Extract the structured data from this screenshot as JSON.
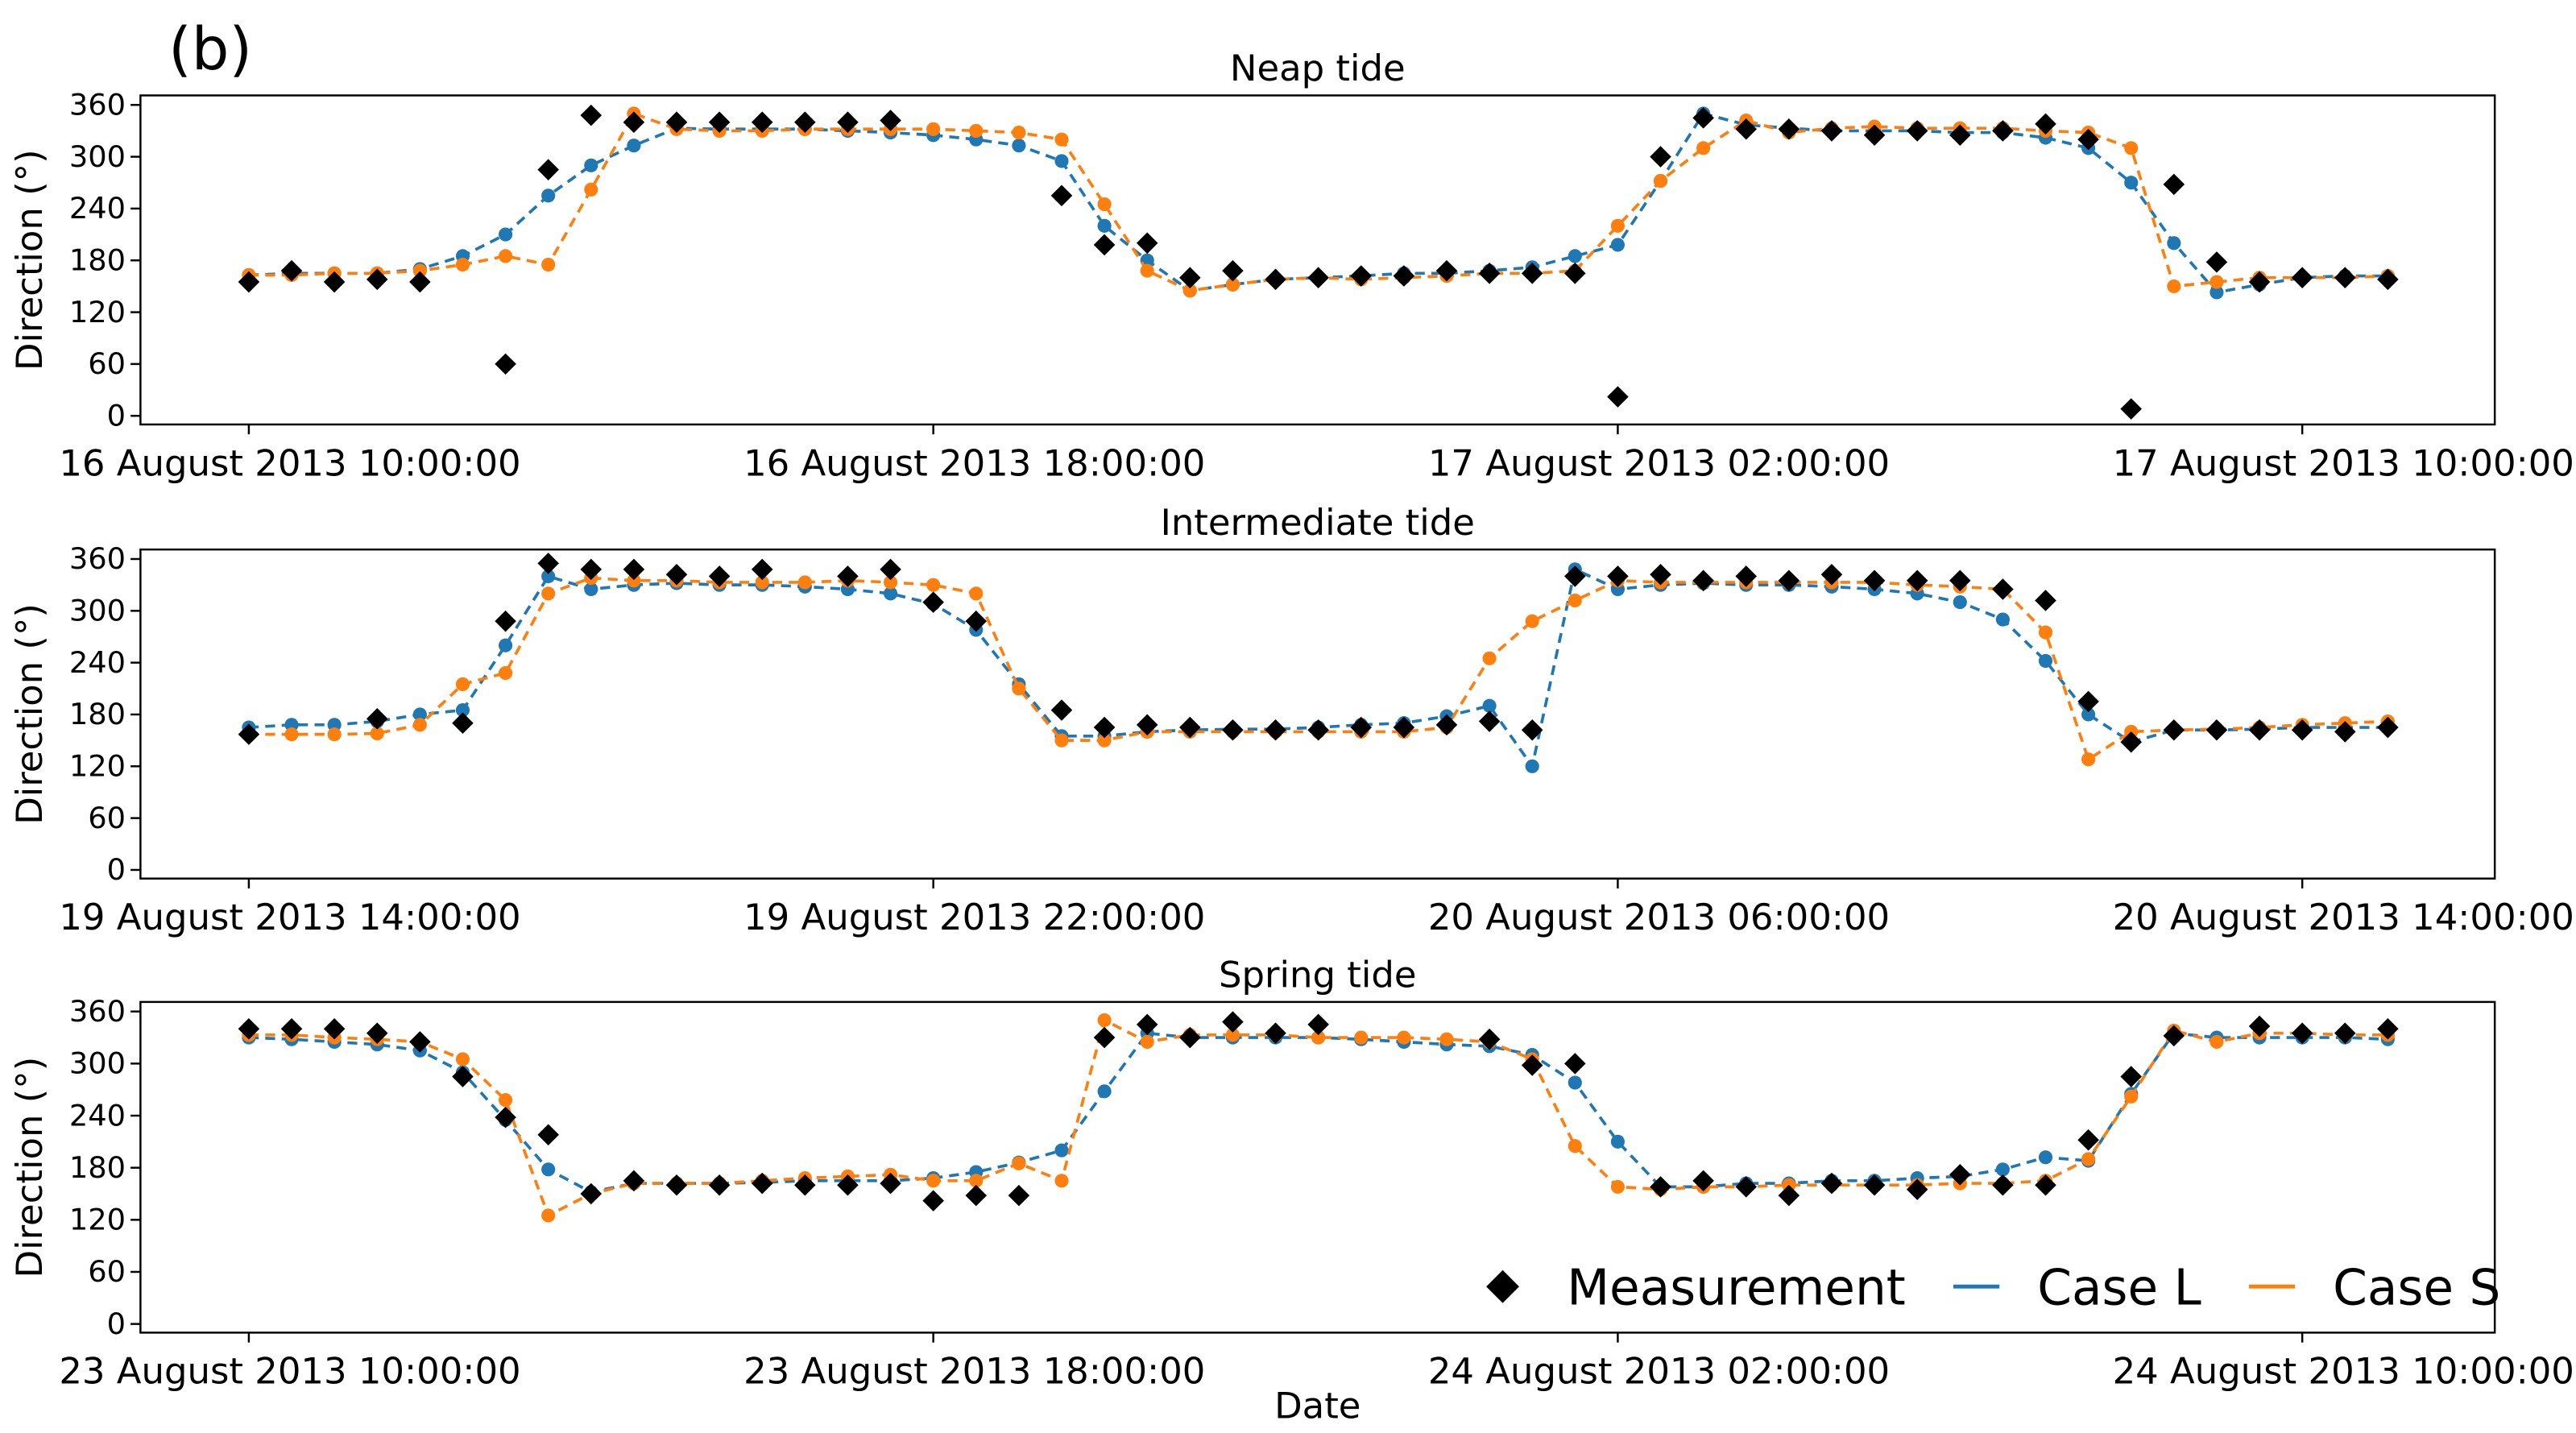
{
  "figure_label": "(b)",
  "chart_data": [
    {
      "type": "line",
      "title": "Neap tide",
      "ylabel": "Direction (°)",
      "x": [
        "2013-08-16T10:00:00",
        "2013-08-16T10:30:00",
        "2013-08-16T11:00:00",
        "2013-08-16T11:30:00",
        "2013-08-16T12:00:00",
        "2013-08-16T12:30:00",
        "2013-08-16T13:00:00",
        "2013-08-16T13:30:00",
        "2013-08-16T14:00:00",
        "2013-08-16T14:30:00",
        "2013-08-16T15:00:00",
        "2013-08-16T15:30:00",
        "2013-08-16T16:00:00",
        "2013-08-16T16:30:00",
        "2013-08-16T17:00:00",
        "2013-08-16T17:30:00",
        "2013-08-16T18:00:00",
        "2013-08-16T18:30:00",
        "2013-08-16T19:00:00",
        "2013-08-16T19:30:00",
        "2013-08-16T20:00:00",
        "2013-08-16T20:30:00",
        "2013-08-16T21:00:00",
        "2013-08-16T21:30:00",
        "2013-08-16T22:00:00",
        "2013-08-16T22:30:00",
        "2013-08-16T23:00:00",
        "2013-08-16T23:30:00",
        "2013-08-17T00:00:00",
        "2013-08-17T00:30:00",
        "2013-08-17T01:00:00",
        "2013-08-17T01:30:00",
        "2013-08-17T02:00:00",
        "2013-08-17T02:30:00",
        "2013-08-17T03:00:00",
        "2013-08-17T03:30:00",
        "2013-08-17T04:00:00",
        "2013-08-17T04:30:00",
        "2013-08-17T05:00:00",
        "2013-08-17T05:30:00",
        "2013-08-17T06:00:00",
        "2013-08-17T06:30:00",
        "2013-08-17T07:00:00",
        "2013-08-17T07:30:00",
        "2013-08-17T08:00:00",
        "2013-08-17T08:30:00",
        "2013-08-17T09:00:00",
        "2013-08-17T09:30:00",
        "2013-08-17T10:00:00",
        "2013-08-17T10:30:00",
        "2013-08-17T11:00:00"
      ],
      "series": [
        {
          "name": "Measurement",
          "color": "#000000",
          "marker": "diamond",
          "values": [
            155,
            168,
            155,
            158,
            155,
            null,
            60,
            285,
            348,
            340,
            340,
            340,
            340,
            340,
            340,
            342,
            null,
            null,
            null,
            255,
            198,
            200,
            160,
            168,
            158,
            160,
            162,
            162,
            168,
            165,
            165,
            165,
            22,
            300,
            345,
            332,
            332,
            330,
            325,
            330,
            325,
            330,
            338,
            320,
            8,
            268,
            178,
            155,
            160,
            160,
            158
          ]
        },
        {
          "name": "Case L",
          "color": "#1f77b4",
          "marker": "line",
          "values": [
            163,
            165,
            165,
            165,
            170,
            185,
            210,
            255,
            290,
            313,
            333,
            332,
            332,
            332,
            330,
            328,
            325,
            320,
            313,
            295,
            220,
            180,
            145,
            152,
            158,
            160,
            162,
            165,
            165,
            168,
            172,
            185,
            198,
            272,
            350,
            337,
            333,
            330,
            330,
            330,
            328,
            328,
            322,
            310,
            270,
            200,
            143,
            152,
            160,
            162,
            162
          ]
        },
        {
          "name": "Case S",
          "color": "#ff7f0e",
          "marker": "line",
          "values": [
            163,
            163,
            165,
            165,
            168,
            175,
            185,
            175,
            262,
            350,
            332,
            330,
            330,
            332,
            332,
            332,
            332,
            330,
            328,
            320,
            245,
            168,
            145,
            152,
            158,
            160,
            158,
            160,
            162,
            165,
            165,
            168,
            220,
            272,
            310,
            342,
            328,
            333,
            335,
            333,
            333,
            333,
            330,
            328,
            310,
            150,
            155,
            160,
            160,
            160,
            162
          ]
        }
      ],
      "xlim": [
        "2013-08-16T08:44:00",
        "2013-08-17T12:15:00"
      ],
      "xticks": [
        {
          "value": "2013-08-16T10:00:00",
          "label": "16 August 2013 10:00:00"
        },
        {
          "value": "2013-08-16T18:00:00",
          "label": "16 August 2013 18:00:00"
        },
        {
          "value": "2013-08-17T02:00:00",
          "label": "17 August 2013 02:00:00"
        },
        {
          "value": "2013-08-17T10:00:00",
          "label": "17 August 2013 10:00:00"
        }
      ],
      "ylim": [
        -10,
        371
      ],
      "yticks": [
        0,
        60,
        120,
        180,
        240,
        300,
        360
      ]
    },
    {
      "type": "line",
      "title": "Intermediate tide",
      "ylabel": "Direction (°)",
      "x": [
        "2013-08-19T14:00:00",
        "2013-08-19T14:30:00",
        "2013-08-19T15:00:00",
        "2013-08-19T15:30:00",
        "2013-08-19T16:00:00",
        "2013-08-19T16:30:00",
        "2013-08-19T17:00:00",
        "2013-08-19T17:30:00",
        "2013-08-19T18:00:00",
        "2013-08-19T18:30:00",
        "2013-08-19T19:00:00",
        "2013-08-19T19:30:00",
        "2013-08-19T20:00:00",
        "2013-08-19T20:30:00",
        "2013-08-19T21:00:00",
        "2013-08-19T21:30:00",
        "2013-08-19T22:00:00",
        "2013-08-19T22:30:00",
        "2013-08-19T23:00:00",
        "2013-08-19T23:30:00",
        "2013-08-20T00:00:00",
        "2013-08-20T00:30:00",
        "2013-08-20T01:00:00",
        "2013-08-20T01:30:00",
        "2013-08-20T02:00:00",
        "2013-08-20T02:30:00",
        "2013-08-20T03:00:00",
        "2013-08-20T03:30:00",
        "2013-08-20T04:00:00",
        "2013-08-20T04:30:00",
        "2013-08-20T05:00:00",
        "2013-08-20T05:30:00",
        "2013-08-20T06:00:00",
        "2013-08-20T06:30:00",
        "2013-08-20T07:00:00",
        "2013-08-20T07:30:00",
        "2013-08-20T08:00:00",
        "2013-08-20T08:30:00",
        "2013-08-20T09:00:00",
        "2013-08-20T09:30:00",
        "2013-08-20T10:00:00",
        "2013-08-20T10:30:00",
        "2013-08-20T11:00:00",
        "2013-08-20T11:30:00",
        "2013-08-20T12:00:00",
        "2013-08-20T12:30:00",
        "2013-08-20T13:00:00",
        "2013-08-20T13:30:00",
        "2013-08-20T14:00:00",
        "2013-08-20T14:30:00",
        "2013-08-20T15:00:00"
      ],
      "series": [
        {
          "name": "Measurement",
          "color": "#000000",
          "marker": "diamond",
          "values": [
            157,
            null,
            null,
            175,
            null,
            170,
            288,
            355,
            348,
            348,
            342,
            340,
            348,
            null,
            340,
            348,
            310,
            288,
            null,
            185,
            165,
            168,
            165,
            162,
            162,
            162,
            165,
            165,
            168,
            172,
            162,
            340,
            340,
            342,
            335,
            340,
            335,
            342,
            335,
            335,
            335,
            325,
            312,
            195,
            148,
            162,
            162,
            162,
            162,
            160,
            165
          ]
        },
        {
          "name": "Case L",
          "color": "#1f77b4",
          "marker": "line",
          "values": [
            165,
            168,
            168,
            172,
            180,
            185,
            260,
            340,
            325,
            330,
            332,
            330,
            330,
            328,
            325,
            320,
            308,
            278,
            215,
            155,
            155,
            160,
            162,
            163,
            163,
            165,
            168,
            170,
            178,
            190,
            120,
            348,
            325,
            330,
            332,
            330,
            330,
            328,
            325,
            320,
            310,
            290,
            242,
            180,
            148,
            162,
            162,
            163,
            165,
            165,
            165
          ]
        },
        {
          "name": "Case S",
          "color": "#ff7f0e",
          "marker": "line",
          "values": [
            157,
            157,
            157,
            158,
            168,
            215,
            228,
            320,
            338,
            335,
            335,
            333,
            333,
            333,
            335,
            333,
            330,
            320,
            210,
            150,
            150,
            160,
            160,
            160,
            160,
            160,
            160,
            160,
            165,
            245,
            288,
            312,
            335,
            333,
            333,
            333,
            333,
            333,
            333,
            330,
            328,
            325,
            275,
            128,
            160,
            162,
            163,
            165,
            168,
            170,
            172
          ]
        }
      ],
      "xlim": [
        "2013-08-19T12:44:00",
        "2013-08-20T16:15:00"
      ],
      "xticks": [
        {
          "value": "2013-08-19T14:00:00",
          "label": "19 August 2013 14:00:00"
        },
        {
          "value": "2013-08-19T22:00:00",
          "label": "19 August 2013 22:00:00"
        },
        {
          "value": "2013-08-20T06:00:00",
          "label": "20 August 2013 06:00:00"
        },
        {
          "value": "2013-08-20T14:00:00",
          "label": "20 August 2013 14:00:00"
        }
      ],
      "ylim": [
        -10,
        371
      ],
      "yticks": [
        0,
        60,
        120,
        180,
        240,
        300,
        360
      ]
    },
    {
      "type": "line",
      "title": "Spring tide",
      "ylabel": "Direction (°)",
      "xlabel": "Date",
      "legend": "lower right",
      "x": [
        "2013-08-23T10:00:00",
        "2013-08-23T10:30:00",
        "2013-08-23T11:00:00",
        "2013-08-23T11:30:00",
        "2013-08-23T12:00:00",
        "2013-08-23T12:30:00",
        "2013-08-23T13:00:00",
        "2013-08-23T13:30:00",
        "2013-08-23T14:00:00",
        "2013-08-23T14:30:00",
        "2013-08-23T15:00:00",
        "2013-08-23T15:30:00",
        "2013-08-23T16:00:00",
        "2013-08-23T16:30:00",
        "2013-08-23T17:00:00",
        "2013-08-23T17:30:00",
        "2013-08-23T18:00:00",
        "2013-08-23T18:30:00",
        "2013-08-23T19:00:00",
        "2013-08-23T19:30:00",
        "2013-08-23T20:00:00",
        "2013-08-23T20:30:00",
        "2013-08-23T21:00:00",
        "2013-08-23T21:30:00",
        "2013-08-23T22:00:00",
        "2013-08-23T22:30:00",
        "2013-08-23T23:00:00",
        "2013-08-23T23:30:00",
        "2013-08-24T00:00:00",
        "2013-08-24T00:30:00",
        "2013-08-24T01:00:00",
        "2013-08-24T01:30:00",
        "2013-08-24T02:00:00",
        "2013-08-24T02:30:00",
        "2013-08-24T03:00:00",
        "2013-08-24T03:30:00",
        "2013-08-24T04:00:00",
        "2013-08-24T04:30:00",
        "2013-08-24T05:00:00",
        "2013-08-24T05:30:00",
        "2013-08-24T06:00:00",
        "2013-08-24T06:30:00",
        "2013-08-24T07:00:00",
        "2013-08-24T07:30:00",
        "2013-08-24T08:00:00",
        "2013-08-24T08:30:00",
        "2013-08-24T09:00:00",
        "2013-08-24T09:30:00",
        "2013-08-24T10:00:00",
        "2013-08-24T10:30:00",
        "2013-08-24T11:00:00"
      ],
      "series": [
        {
          "name": "Measurement",
          "color": "#000000",
          "marker": "diamond",
          "values": [
            340,
            340,
            340,
            335,
            325,
            285,
            238,
            218,
            150,
            165,
            160,
            160,
            162,
            160,
            160,
            162,
            142,
            148,
            148,
            null,
            330,
            345,
            330,
            348,
            335,
            345,
            null,
            null,
            null,
            328,
            298,
            300,
            null,
            158,
            165,
            158,
            148,
            162,
            160,
            155,
            172,
            160,
            160,
            212,
            285,
            332,
            null,
            343,
            335,
            335,
            340
          ]
        },
        {
          "name": "Case L",
          "color": "#1f77b4",
          "marker": "line",
          "values": [
            330,
            328,
            325,
            322,
            315,
            290,
            235,
            178,
            152,
            162,
            162,
            162,
            163,
            165,
            165,
            165,
            168,
            175,
            186,
            200,
            268,
            335,
            330,
            330,
            330,
            330,
            328,
            325,
            322,
            320,
            310,
            278,
            210,
            158,
            158,
            162,
            162,
            165,
            165,
            168,
            170,
            178,
            192,
            188,
            265,
            335,
            330,
            330,
            330,
            330,
            328
          ]
        },
        {
          "name": "Case S",
          "color": "#ff7f0e",
          "marker": "line",
          "values": [
            333,
            333,
            330,
            328,
            325,
            305,
            258,
            125,
            150,
            162,
            162,
            162,
            165,
            168,
            170,
            172,
            165,
            165,
            185,
            165,
            350,
            325,
            333,
            333,
            333,
            330,
            330,
            330,
            328,
            325,
            305,
            205,
            158,
            155,
            158,
            158,
            160,
            160,
            160,
            160,
            162,
            162,
            165,
            190,
            262,
            338,
            325,
            335,
            335,
            333,
            333
          ]
        }
      ],
      "xlim": [
        "2013-08-23T08:44:00",
        "2013-08-24T12:15:00"
      ],
      "xticks": [
        {
          "value": "2013-08-23T10:00:00",
          "label": "23 August 2013 10:00:00"
        },
        {
          "value": "2013-08-23T18:00:00",
          "label": "23 August 2013 18:00:00"
        },
        {
          "value": "2013-08-24T02:00:00",
          "label": "24 August 2013 02:00:00"
        },
        {
          "value": "2013-08-24T10:00:00",
          "label": "24 August 2013 10:00:00"
        }
      ],
      "ylim": [
        -10,
        371
      ],
      "yticks": [
        0,
        60,
        120,
        180,
        240,
        300,
        360
      ]
    }
  ]
}
